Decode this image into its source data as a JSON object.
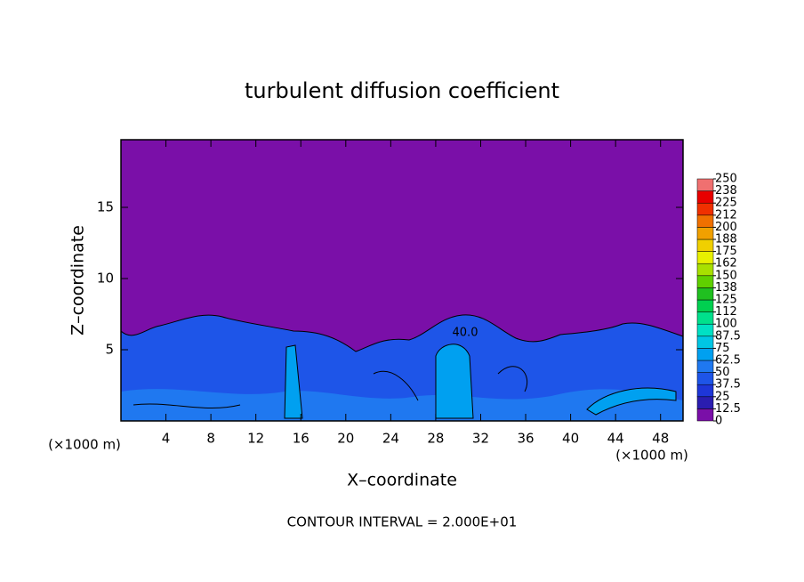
{
  "chart_data": {
    "type": "contour",
    "title": "turbulent diffusion coefficient",
    "x_label": "X–coordinate",
    "y_label": "Z–coordinate",
    "x_unit_labels": [
      "(×1000 m)",
      "(×1000 m)"
    ],
    "footer": "CONTOUR INTERVAL = 2.000E+01",
    "contour_labels": [
      "40.0"
    ],
    "xlim": [
      0,
      50
    ],
    "xticks": [
      4,
      8,
      12,
      16,
      20,
      24,
      28,
      32,
      36,
      40,
      44,
      48
    ],
    "ylim": [
      0,
      19.75
    ],
    "yticks": [
      5,
      10,
      15
    ],
    "colorbar": {
      "ticks": [
        0,
        12.5,
        25,
        37.5,
        50,
        62.5,
        75,
        87.5,
        100,
        {
          "value": 112.5,
          "label": "112"
        },
        125,
        {
          "value": 137.5,
          "label": "138"
        },
        150,
        {
          "value": 162.5,
          "label": "162"
        },
        175,
        {
          "value": 187.5,
          "label": "188"
        },
        200,
        {
          "value": 212.5,
          "label": "212"
        },
        225,
        {
          "value": 237.5,
          "label": "238"
        },
        250
      ],
      "colors": [
        "#7a0fa8",
        "#2a1db0",
        "#1e36d8",
        "#1e55e8",
        "#1f78f0",
        "#00a0f0",
        "#00c6e4",
        "#00e0c4",
        "#00e08c",
        "#00d050",
        "#20c020",
        "#60d000",
        "#a8e000",
        "#e8f000",
        "#f0d000",
        "#f0a000",
        "#f07000",
        "#f03000",
        "#e80000",
        "#f07070"
      ]
    }
  }
}
